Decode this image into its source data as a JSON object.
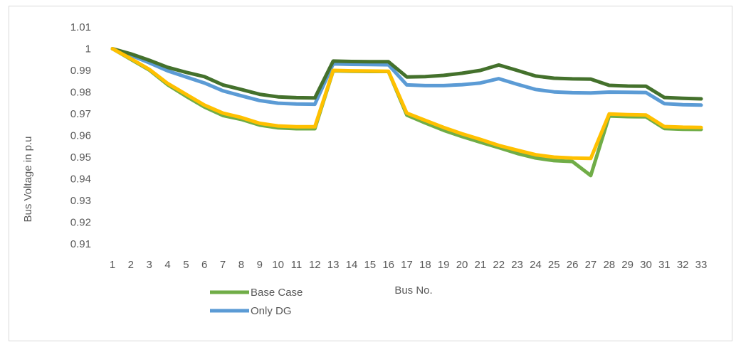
{
  "chart_data": {
    "type": "line",
    "xlabel": "Bus No.",
    "ylabel": "Bus Voltage in p.u",
    "ylim": [
      0.91,
      1.01
    ],
    "y_ticks": [
      "0.91",
      "0.92",
      "0.93",
      "0.94",
      "0.95",
      "0.96",
      "0.97",
      "0.98",
      "0.99",
      "1",
      "1.01"
    ],
    "categories": [
      "1",
      "2",
      "3",
      "4",
      "5",
      "6",
      "7",
      "8",
      "9",
      "10",
      "11",
      "12",
      "13",
      "14",
      "15",
      "16",
      "17",
      "18",
      "19",
      "20",
      "21",
      "22",
      "23",
      "24",
      "25",
      "26",
      "27",
      "28",
      "29",
      "30",
      "31",
      "32",
      "33"
    ],
    "grid": false,
    "legend_position": "bottom-left",
    "series": [
      {
        "name": "Base Case",
        "color": "#70ad47",
        "legend": true,
        "values": [
          1.0,
          0.9951,
          0.9902,
          0.9834,
          0.9781,
          0.9731,
          0.9692,
          0.9674,
          0.9648,
          0.9635,
          0.9631,
          0.9631,
          0.9898,
          0.9896,
          0.9895,
          0.9895,
          0.9694,
          0.9658,
          0.9624,
          0.9595,
          0.9569,
          0.9544,
          0.9517,
          0.9496,
          0.9484,
          0.948,
          0.9415,
          0.969,
          0.9687,
          0.9686,
          0.9632,
          0.9629,
          0.9628
        ]
      },
      {
        "name": "Only DG",
        "color": "#5b9bd5",
        "legend": true,
        "values": [
          1.0,
          0.997,
          0.9935,
          0.9898,
          0.987,
          0.9842,
          0.9806,
          0.9783,
          0.9761,
          0.9749,
          0.9745,
          0.9744,
          0.993,
          0.9928,
          0.9927,
          0.9926,
          0.9833,
          0.983,
          0.983,
          0.9834,
          0.9842,
          0.9862,
          0.9836,
          0.9812,
          0.9801,
          0.9797,
          0.9796,
          0.98,
          0.9799,
          0.9798,
          0.9747,
          0.9742,
          0.974
        ]
      },
      {
        "name": "",
        "color": "#44712c",
        "legend": false,
        "values": [
          1.0,
          0.9976,
          0.9947,
          0.9914,
          0.9891,
          0.9871,
          0.9833,
          0.9812,
          0.979,
          0.9778,
          0.9774,
          0.9773,
          0.9943,
          0.9941,
          0.994,
          0.994,
          0.987,
          0.9871,
          0.9877,
          0.9887,
          0.99,
          0.9925,
          0.99,
          0.9874,
          0.9864,
          0.9861,
          0.986,
          0.9831,
          0.9828,
          0.9827,
          0.9775,
          0.9771,
          0.9769
        ]
      },
      {
        "name": "",
        "color": "#ffc000",
        "legend": false,
        "values": [
          1.0,
          0.9954,
          0.9905,
          0.984,
          0.979,
          0.974,
          0.9703,
          0.9683,
          0.9656,
          0.9644,
          0.964,
          0.964,
          0.99,
          0.9898,
          0.9897,
          0.9896,
          0.9703,
          0.967,
          0.9637,
          0.9608,
          0.9582,
          0.9554,
          0.9532,
          0.9511,
          0.95,
          0.9496,
          0.9494,
          0.9699,
          0.9696,
          0.9694,
          0.9641,
          0.9638,
          0.9637
        ]
      }
    ]
  }
}
